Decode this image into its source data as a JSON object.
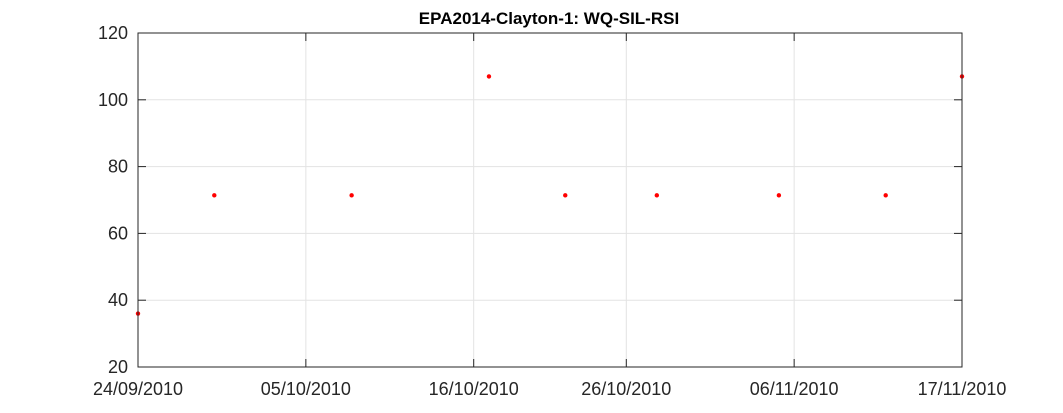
{
  "chart_data": {
    "type": "scatter",
    "title": "EPA2014-Clayton-1: WQ-SIL-RSI",
    "xlabel": "",
    "ylabel": "",
    "x_tick_labels": [
      "24/09/2010",
      "05/10/2010",
      "16/10/2010",
      "26/10/2010",
      "06/11/2010",
      "17/11/2010"
    ],
    "x_tick_dates": [
      "2010-09-24",
      "2010-10-05",
      "2010-10-16",
      "2010-10-26",
      "2010-11-06",
      "2010-11-17"
    ],
    "xlim": [
      "2010-09-24",
      "2010-11-17"
    ],
    "y_ticks": [
      20,
      40,
      60,
      80,
      100,
      120
    ],
    "ylim": [
      20,
      120
    ],
    "grid": true,
    "marker_color": "#ff0000",
    "series": [
      {
        "x": [
          "2010-09-24",
          "2010-09-29",
          "2010-10-08",
          "2010-10-17",
          "2010-10-22",
          "2010-10-28",
          "2010-11-05",
          "2010-11-12",
          "2010-11-17"
        ],
        "y": [
          36,
          71.4,
          71.4,
          107,
          71.4,
          71.4,
          71.4,
          71.4,
          107
        ]
      }
    ]
  }
}
